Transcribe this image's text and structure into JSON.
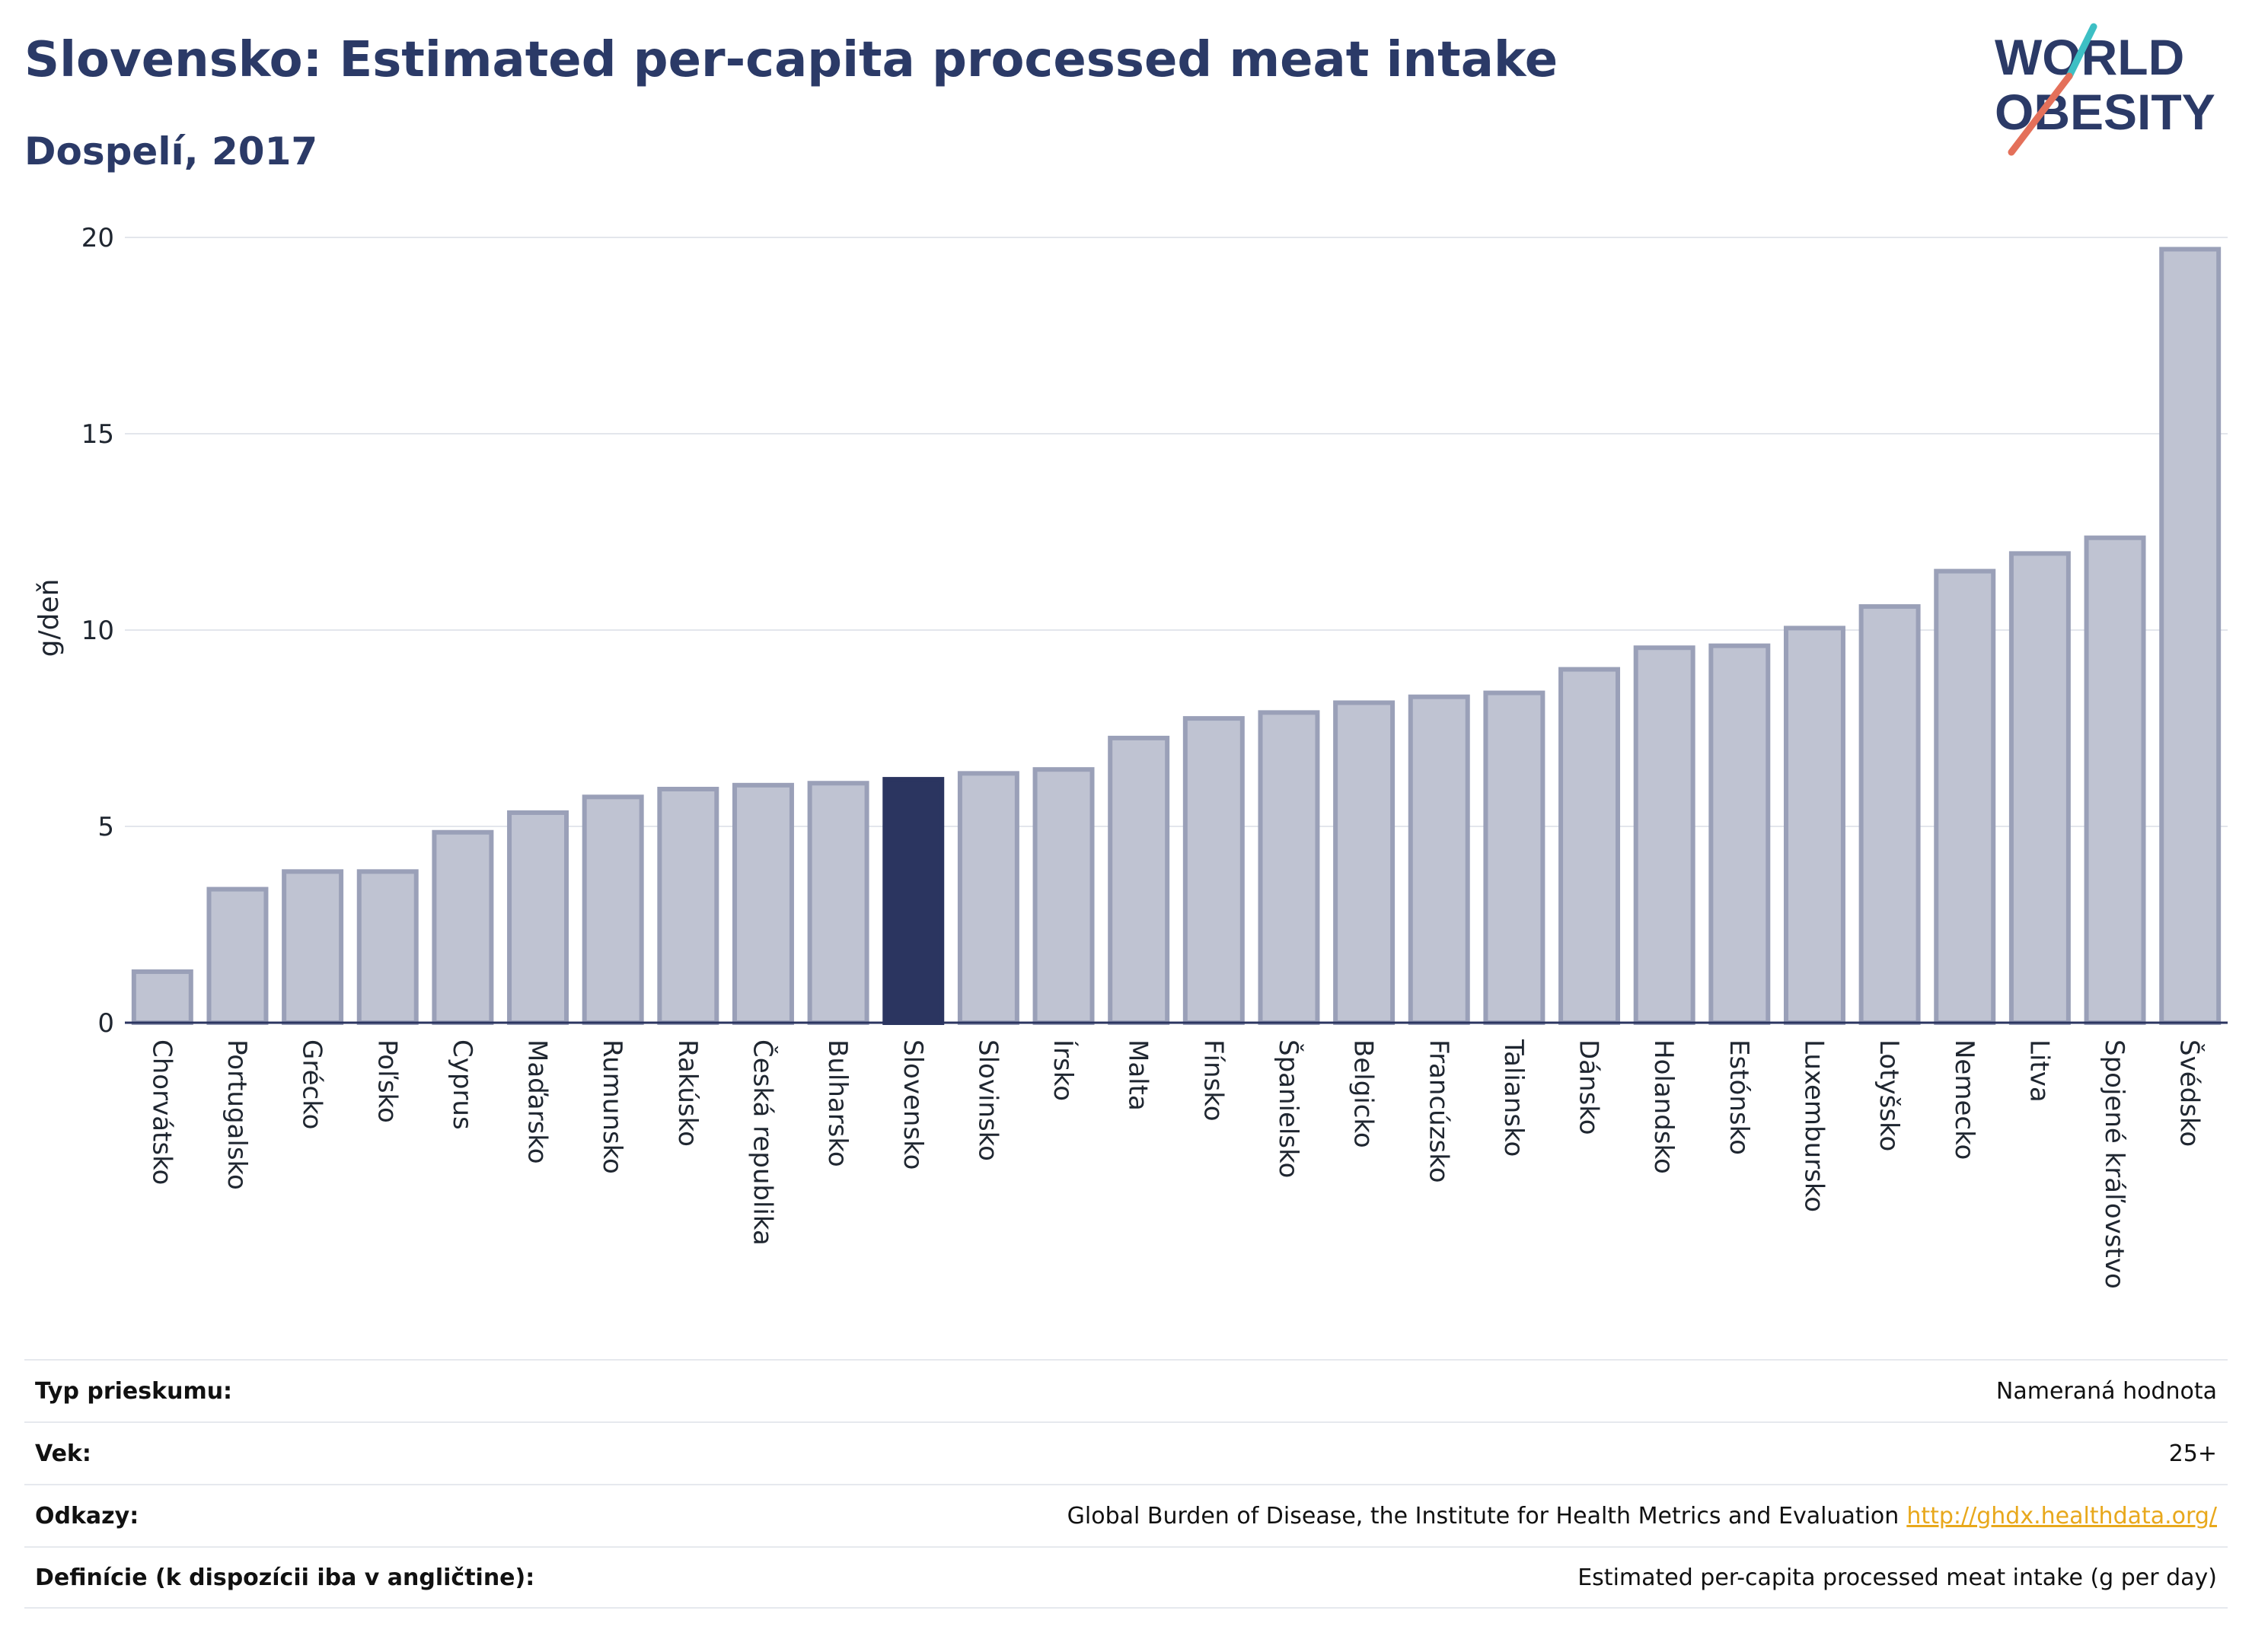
{
  "header": {
    "title": "Slovensko: Estimated per-capita processed meat intake",
    "subtitle": "Dospelí, 2017"
  },
  "logo": {
    "line1": "WORLD",
    "line2": "OBESITY",
    "slash_colors": [
      "#e4705a",
      "#3dbfc4"
    ]
  },
  "colors": {
    "bar": "#bfc3d2",
    "bar_border": "#9aa0b8",
    "highlight": "#2b3560",
    "grid": "#e3e6ec",
    "axis": "#2b3560",
    "title": "#2b3a67",
    "link": "#e8a81c"
  },
  "chart_data": {
    "type": "bar",
    "ylabel": "g/deň",
    "ylim": [
      0,
      20
    ],
    "yticks": [
      0,
      5,
      10,
      15,
      20
    ],
    "grid": true,
    "highlight": "Slovensko",
    "categories": [
      "Chorvátsko",
      "Portugalsko",
      "Grécko",
      "Poľsko",
      "Cyprus",
      "Maďarsko",
      "Rumunsko",
      "Rakúsko",
      "Česká republika",
      "Bulharsko",
      "Slovensko",
      "Slovinsko",
      "Írsko",
      "Malta",
      "Fínsko",
      "Španielsko",
      "Belgicko",
      "Francúzsko",
      "Taliansko",
      "Dánsko",
      "Holandsko",
      "Estónsko",
      "Luxembursko",
      "Lotyšsko",
      "Nemecko",
      "Litva",
      "Spojené kráľovstvo",
      "Švédsko"
    ],
    "values": [
      1.3,
      3.4,
      3.85,
      3.85,
      4.85,
      5.35,
      5.75,
      5.95,
      6.05,
      6.1,
      6.2,
      6.35,
      6.45,
      7.25,
      7.75,
      7.9,
      8.15,
      8.3,
      8.4,
      9.0,
      9.55,
      9.6,
      10.05,
      10.6,
      11.5,
      11.95,
      12.35,
      19.7
    ]
  },
  "details": [
    {
      "label": "Typ prieskumu:",
      "value": "Nameraná hodnota",
      "link": ""
    },
    {
      "label": "Vek:",
      "value": "25+",
      "link": ""
    },
    {
      "label": "Odkazy:",
      "value": "Global Burden of Disease, the Institute for Health Metrics and Evaluation",
      "link": "http://ghdx.healthdata.org/"
    },
    {
      "label": "Definície (k dispozícii iba v angličtine):",
      "value": "Estimated per-capita processed meat intake (g per day)",
      "link": ""
    }
  ]
}
